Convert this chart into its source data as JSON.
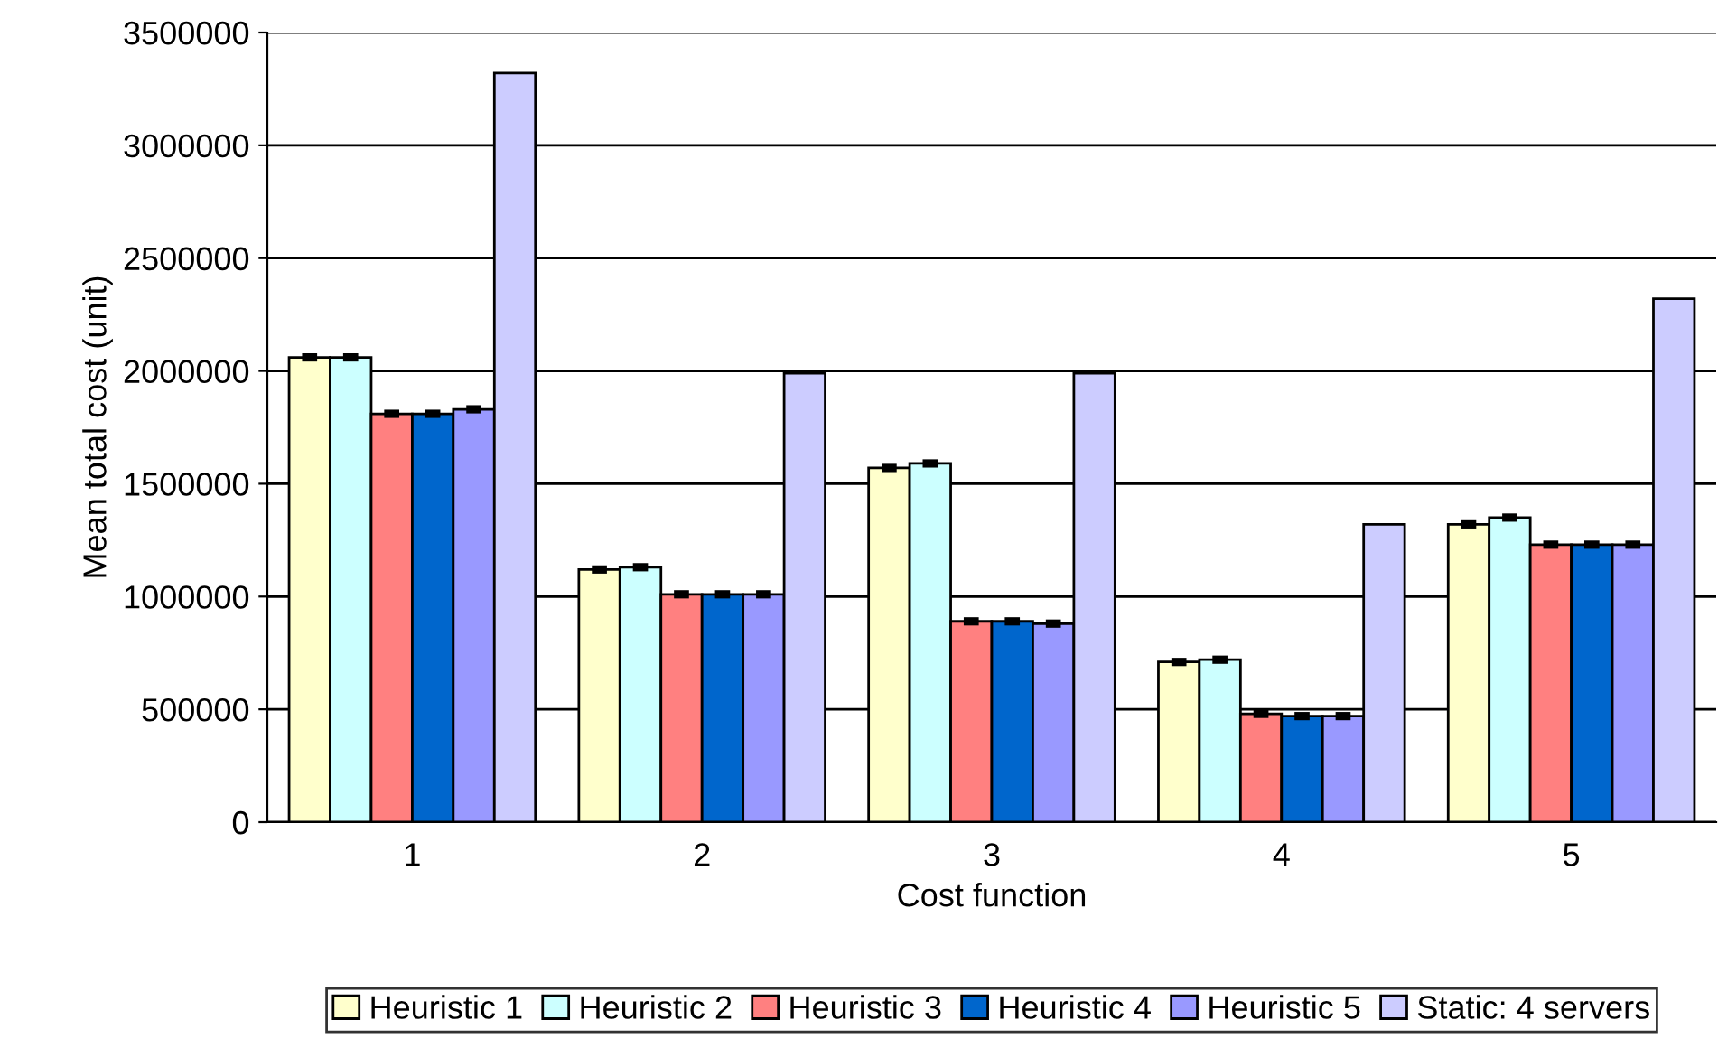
{
  "chart_data": {
    "type": "bar",
    "xlabel": "Cost function",
    "ylabel": "Mean total cost (unit)",
    "categories": [
      "1",
      "2",
      "3",
      "4",
      "5"
    ],
    "series": [
      {
        "name": "Heuristic 1",
        "color": "#ffffcc",
        "values": [
          2060000,
          1120000,
          1570000,
          710000,
          1320000
        ],
        "errors": [
          10000,
          10000,
          10000,
          10000,
          10000
        ]
      },
      {
        "name": "Heuristic 2",
        "color": "#ccffff",
        "values": [
          2060000,
          1130000,
          1590000,
          720000,
          1350000
        ],
        "errors": [
          10000,
          10000,
          10000,
          10000,
          10000
        ]
      },
      {
        "name": "Heuristic 3",
        "color": "#ff8080",
        "values": [
          1810000,
          1010000,
          890000,
          480000,
          1230000
        ],
        "errors": [
          10000,
          10000,
          10000,
          10000,
          10000
        ]
      },
      {
        "name": "Heuristic 4",
        "color": "#0066cc",
        "values": [
          1810000,
          1010000,
          890000,
          470000,
          1230000
        ],
        "errors": [
          10000,
          10000,
          10000,
          10000,
          10000
        ]
      },
      {
        "name": "Heuristic 5",
        "color": "#9999ff",
        "values": [
          1830000,
          1010000,
          880000,
          470000,
          1230000
        ],
        "errors": [
          10000,
          10000,
          10000,
          10000,
          10000
        ]
      },
      {
        "name": "Static: 4 servers",
        "color": "#ccccff",
        "values": [
          3320000,
          1990000,
          1990000,
          1320000,
          2320000
        ]
      }
    ],
    "ylim": [
      0,
      3500000
    ],
    "yticks": [
      0,
      500000,
      1000000,
      1500000,
      2000000,
      2500000,
      3000000,
      3500000
    ],
    "grid": "y",
    "legend": "bottom"
  }
}
